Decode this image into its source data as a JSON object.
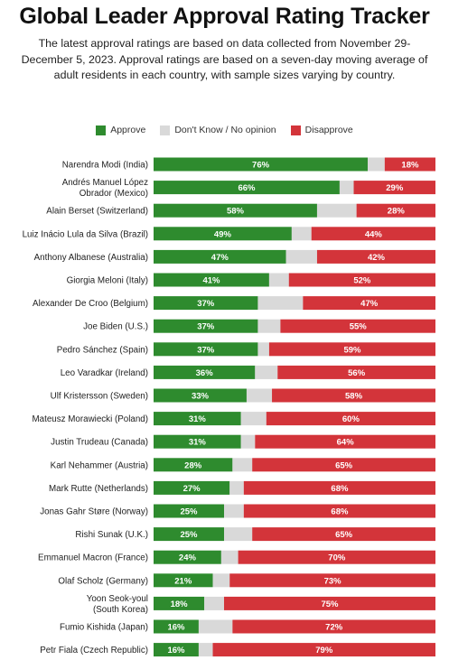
{
  "title": "Global Leader Approval Rating Tracker",
  "subtitle": "The latest approval ratings are based on data collected from November 29-December 5, 2023. Approval ratings are based on a seven-day moving average of adult residents in each country, with sample sizes varying by country.",
  "colors": {
    "approve": "#2e8b2e",
    "dont_know": "#d9d9d9",
    "disapprove": "#d3343a"
  },
  "chart_data": {
    "type": "bar",
    "orientation": "horizontal",
    "stacked": true,
    "xlim": [
      0,
      100
    ],
    "legend_position": "top-center",
    "legend": [
      "Approve",
      "Don't Know / No opinion",
      "Disapprove"
    ],
    "categories": [
      [
        "Narendra Modi (India)"
      ],
      [
        "Andrés Manuel López",
        "Obrador (Mexico)"
      ],
      [
        "Alain Berset (Switzerland)"
      ],
      [
        "Luiz Inácio Lula da Silva (Brazil)"
      ],
      [
        "Anthony Albanese (Australia)"
      ],
      [
        "Giorgia Meloni (Italy)"
      ],
      [
        "Alexander De Croo (Belgium)"
      ],
      [
        "Joe Biden (U.S.)"
      ],
      [
        "Pedro Sánchez (Spain)"
      ],
      [
        "Leo Varadkar (Ireland)"
      ],
      [
        "Ulf Kristersson (Sweden)"
      ],
      [
        "Mateusz Morawiecki (Poland)"
      ],
      [
        "Justin Trudeau (Canada)"
      ],
      [
        "Karl Nehammer (Austria)"
      ],
      [
        "Mark Rutte (Netherlands)"
      ],
      [
        "Jonas Gahr Støre (Norway)"
      ],
      [
        "Rishi Sunak (U.K.)"
      ],
      [
        "Emmanuel Macron (France)"
      ],
      [
        "Olaf Scholz (Germany)"
      ],
      [
        "Yoon Seok-youl",
        "(South Korea)"
      ],
      [
        "Fumio Kishida (Japan)"
      ],
      [
        "Petr Fiala (Czech Republic)"
      ]
    ],
    "series": [
      {
        "name": "Approve",
        "values": [
          76,
          66,
          58,
          49,
          47,
          41,
          37,
          37,
          37,
          36,
          33,
          31,
          31,
          28,
          27,
          25,
          25,
          24,
          21,
          18,
          16,
          16
        ]
      },
      {
        "name": "Don't Know / No opinion",
        "values": [
          6,
          5,
          14,
          7,
          11,
          7,
          16,
          8,
          4,
          8,
          9,
          9,
          5,
          7,
          5,
          7,
          10,
          6,
          6,
          7,
          12,
          5
        ]
      },
      {
        "name": "Disapprove",
        "values": [
          18,
          29,
          28,
          44,
          42,
          52,
          47,
          55,
          59,
          56,
          58,
          60,
          64,
          65,
          68,
          68,
          65,
          70,
          73,
          75,
          72,
          79
        ]
      }
    ],
    "value_suffix": "%"
  }
}
